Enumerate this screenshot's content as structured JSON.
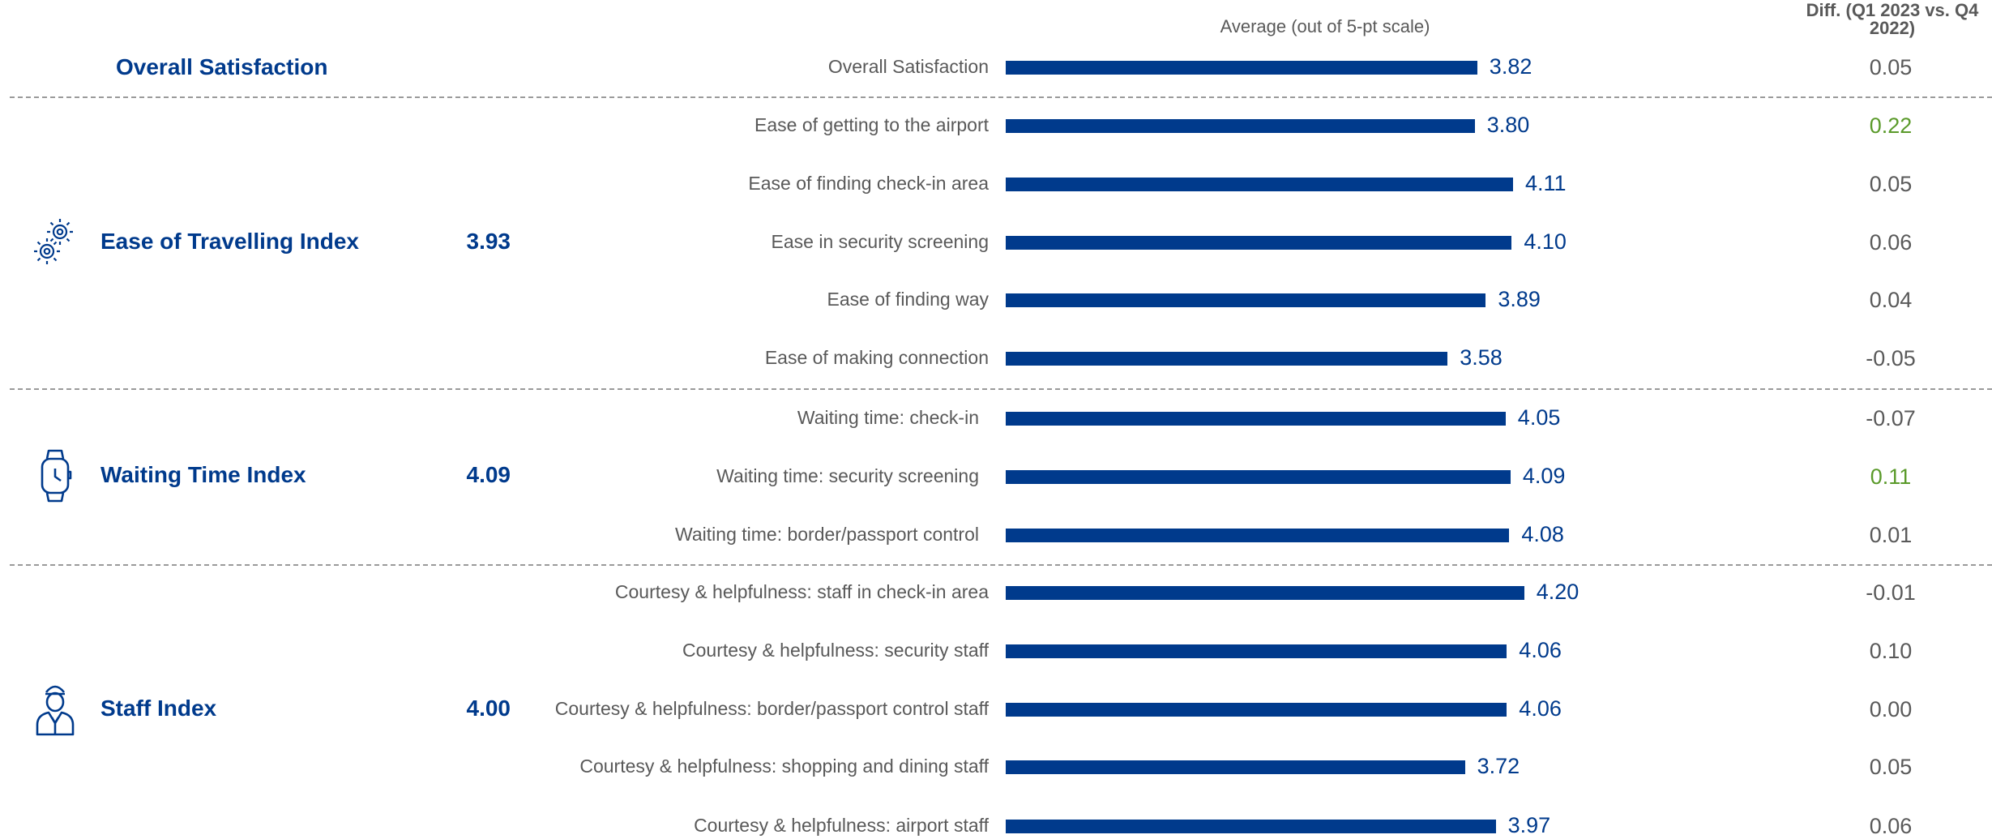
{
  "header": {
    "avg_label": "Average (out of 5-pt scale)",
    "diff_label_line1": "Diff. (Q1 2023 vs. Q4",
    "diff_label_line2": "2022)"
  },
  "colors": {
    "bar": "#003a8c",
    "title": "#003a8c",
    "label": "#595959",
    "diff_positive": "#5a9a2a",
    "diff_neutral": "#595959",
    "separator": "#9a9a9a"
  },
  "sections": [
    {
      "title": "Overall Satisfaction",
      "index": "",
      "icon": ""
    },
    {
      "title": "Ease of Travelling Index",
      "index": "3.93",
      "icon": "gears-icon"
    },
    {
      "title": "Waiting Time Index",
      "index": "4.09",
      "icon": "watch-icon"
    },
    {
      "title": "Staff Index",
      "index": "4.00",
      "icon": "staff-person-icon"
    }
  ],
  "chart_data": {
    "type": "bar",
    "orientation": "horizontal",
    "xlabel": "Average (out of 5-pt scale)",
    "categories": [
      "Overall Satisfaction",
      "Ease of getting to the airport",
      "Ease of finding check-in area",
      "Ease in security screening",
      "Ease of finding way",
      "Ease of making connection",
      "Waiting time: check-in",
      "Waiting time: security screening",
      "Waiting time: border/passport control",
      "Courtesy & helpfulness: staff in check-in area",
      "Courtesy & helpfulness: security staff",
      "Courtesy & helpfulness: border/passport control staff",
      "Courtesy & helpfulness: shopping and dining staff",
      "Courtesy & helpfulness: airport staff"
    ],
    "values": [
      3.82,
      3.8,
      4.11,
      4.1,
      3.89,
      3.58,
      4.05,
      4.09,
      4.08,
      4.2,
      4.06,
      4.06,
      3.72,
      3.97
    ],
    "value_labels": [
      "3.82",
      "3.80",
      "4.11",
      "4.10",
      "3.89",
      "3.58",
      "4.05",
      "4.09",
      "4.08",
      "4.20",
      "4.06",
      "4.06",
      "3.72",
      "3.97"
    ],
    "diff": [
      "0.05",
      "0.22",
      "0.05",
      "0.06",
      "0.04",
      "-0.05",
      "-0.07",
      "0.11",
      "0.01",
      "-0.01",
      "0.10",
      "0.00",
      "0.05",
      "0.06"
    ],
    "diff_highlight": [
      false,
      true,
      false,
      false,
      false,
      false,
      false,
      true,
      false,
      false,
      false,
      false,
      false,
      false
    ],
    "section_of_row": [
      0,
      1,
      1,
      1,
      1,
      1,
      2,
      2,
      2,
      3,
      3,
      3,
      3,
      3
    ],
    "xlim": [
      0,
      5
    ]
  }
}
